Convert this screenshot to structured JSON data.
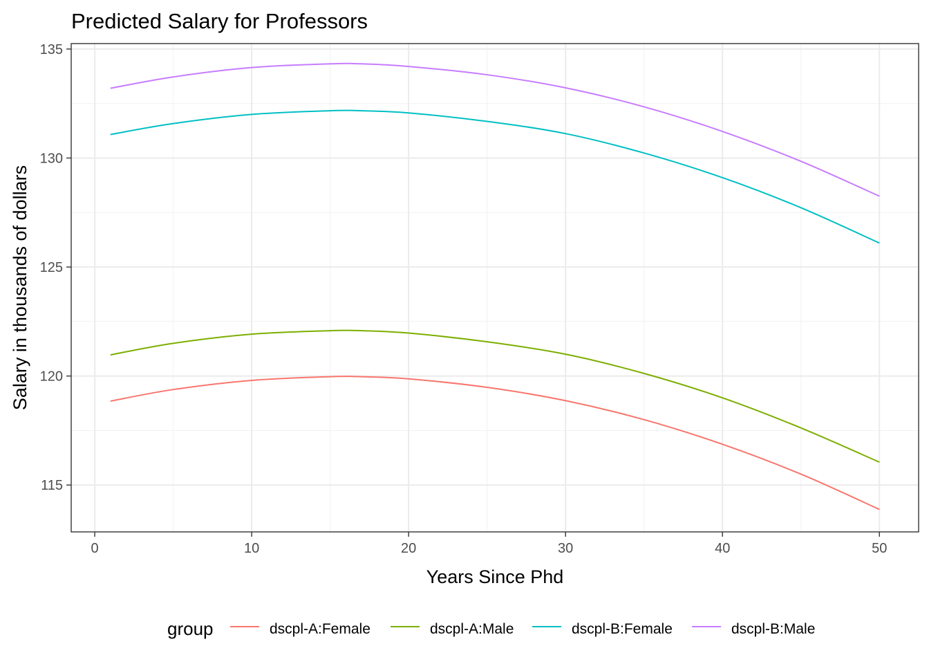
{
  "chart_data": {
    "type": "line",
    "title": "Predicted Salary for Professors",
    "xlabel": "Years Since Phd",
    "ylabel": "Salary in thousands of dollars",
    "xlim": [
      -1.5,
      52.5
    ],
    "ylim": [
      112.85,
      135.25
    ],
    "x_ticks": [
      0,
      10,
      20,
      30,
      40,
      50
    ],
    "x_minor_ticks": [
      5,
      15,
      25,
      35,
      45
    ],
    "y_ticks": [
      115,
      120,
      125,
      130,
      135
    ],
    "y_minor_ticks": [
      117.5,
      122.5,
      127.5,
      132.5
    ],
    "grid": true,
    "legend": {
      "title": "group",
      "position": "bottom"
    },
    "x": [
      1,
      5,
      10,
      15,
      17,
      20,
      25,
      30,
      35,
      40,
      45,
      50
    ],
    "series": [
      {
        "name": "dscpl-A:Female",
        "color": "#F8766D",
        "values": [
          118.85,
          119.38,
          119.8,
          119.97,
          119.97,
          119.87,
          119.48,
          118.87,
          118.0,
          116.87,
          115.5,
          113.88
        ]
      },
      {
        "name": "dscpl-A:Male",
        "color": "#7CAE00",
        "values": [
          120.97,
          121.5,
          121.92,
          122.08,
          122.08,
          121.97,
          121.57,
          121.0,
          120.12,
          119.0,
          117.62,
          116.05
        ]
      },
      {
        "name": "dscpl-B:Female",
        "color": "#00BFC4",
        "values": [
          131.08,
          131.58,
          132.0,
          132.17,
          132.17,
          132.07,
          131.68,
          131.12,
          130.23,
          129.1,
          127.72,
          126.1
        ]
      },
      {
        "name": "dscpl-B:Male",
        "color": "#C77CFF",
        "values": [
          133.2,
          133.72,
          134.15,
          134.32,
          134.32,
          134.2,
          133.82,
          133.22,
          132.35,
          131.22,
          129.85,
          128.25
        ]
      }
    ]
  }
}
